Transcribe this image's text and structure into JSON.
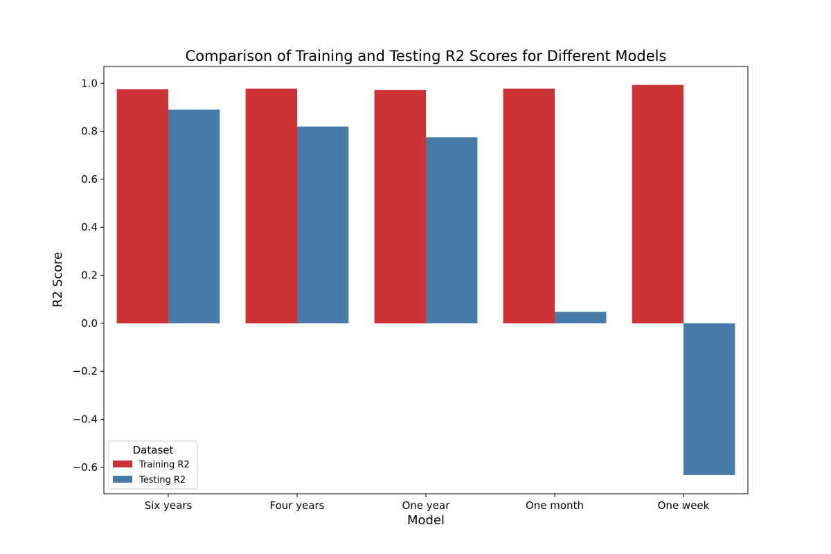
{
  "chart_data": {
    "type": "bar",
    "title": "Comparison of Training and Testing R2 Scores for Different Models",
    "xlabel": "Model",
    "ylabel": "R2 Score",
    "categories": [
      "Six years",
      "Four years",
      "One year",
      "One month",
      "One week"
    ],
    "series": [
      {
        "name": "Training R2",
        "color": "#cb3335",
        "values": [
          0.975,
          0.978,
          0.972,
          0.978,
          0.993
        ]
      },
      {
        "name": "Testing R2",
        "color": "#477ca8",
        "values": [
          0.89,
          0.82,
          0.775,
          0.048,
          -0.632
        ]
      }
    ],
    "ylim": [
      -0.71,
      1.07
    ],
    "yticks": [
      -0.6,
      -0.4,
      -0.2,
      0.0,
      0.2,
      0.4,
      0.6,
      0.8,
      1.0
    ],
    "ytick_labels": [
      "−0.6",
      "−0.4",
      "−0.2",
      "0.0",
      "0.2",
      "0.4",
      "0.6",
      "0.8",
      "1.0"
    ],
    "grid": false,
    "legend": {
      "title": "Dataset",
      "position": "lower-left"
    }
  }
}
